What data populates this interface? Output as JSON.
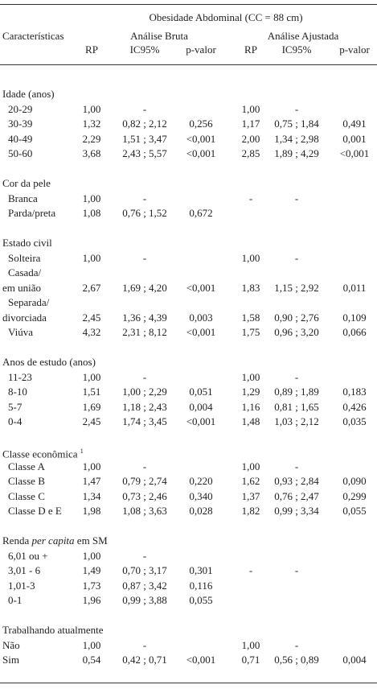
{
  "header": {
    "super": "Obesidade Abdominal (CC = 88 cm)",
    "first_column": "Características",
    "groups": [
      "Análise Bruta",
      "Análise Ajustada"
    ],
    "columns": [
      "RP",
      "IC95%",
      "p-valor",
      "RP",
      "IC95%",
      "p-valor"
    ]
  },
  "table": {
    "sections": [
      {
        "title": "Idade (anos)",
        "rows": [
          [
            "20-29",
            "1,00",
            "-",
            null,
            "1,00",
            "-",
            null
          ],
          [
            "30-39",
            "1,32",
            "0,82 ; 2,12",
            "0,256",
            "1,17",
            "0,75 ; 1,84",
            "0,491"
          ],
          [
            "40-49",
            "2,29",
            "1,51 ; 3,47",
            "<0,001",
            "2,00",
            "1,34 ; 2,98",
            "0,001"
          ],
          [
            "50-60",
            "3,68",
            "2,43 ; 5,57",
            "<0,001",
            "2,85",
            "1,89 ; 4,29",
            "<0,001"
          ]
        ]
      },
      {
        "title": "Cor da pele",
        "rows": [
          [
            "Branca",
            "1,00",
            "-",
            null,
            "-",
            "-",
            null
          ],
          [
            "Parda/preta",
            "1,08",
            "0,76 ; 1,52",
            "0,672",
            null,
            null,
            null
          ]
        ]
      },
      {
        "title": "Estado civil",
        "rows": [
          [
            "Solteira",
            "1,00",
            "-",
            null,
            "1,00",
            "-",
            null
          ],
          [
            [
              "Casada/",
              "em união"
            ],
            "2,67",
            "1,69 ; 4,20",
            "<0,001",
            "1,83",
            "1,15 ; 2,92",
            "0,011"
          ],
          [
            [
              "Separada/",
              "divorciada"
            ],
            "2,45",
            "1,36 ; 4,39",
            "0,003",
            "1,58",
            "0,90 ; 2,76",
            "0,109"
          ],
          [
            "Viúva",
            "4,32",
            "2,31 ; 8,12",
            "<0,001",
            "1,75",
            "0,96 ; 3,20",
            "0,066"
          ]
        ]
      },
      {
        "title": "Anos de estudo (anos)",
        "rows": [
          [
            "11-23",
            "1,00",
            "-",
            null,
            "1,00",
            "-",
            null
          ],
          [
            "8-10",
            "1,51",
            "1,00 ; 2,29",
            "0,051",
            "1,29",
            "0,89 ; 1,89",
            "0,183"
          ],
          [
            "5-7",
            "1,69",
            "1,18 ; 2,43",
            "0,004",
            "1,16",
            "0,81 ; 1,65",
            "0,426"
          ],
          [
            "0-4",
            "2,45",
            "1,74 ; 3,45",
            "<0,001",
            "1,48",
            "1,03 ; 2,12",
            "0,035"
          ]
        ]
      },
      {
        "title": "Classe econômica",
        "note": "1",
        "rows": [
          [
            "Classe A",
            "1,00",
            "-",
            null,
            "1,00",
            "-",
            null
          ],
          [
            "Classe B",
            "1,47",
            "0,79 ; 2,74",
            "0,220",
            "1,62",
            "0,93 ; 2,84",
            "0,090"
          ],
          [
            "Classe C",
            "1,34",
            "0,73 ; 2,46",
            "0,340",
            "1,37",
            "0,76 ; 2,47",
            "0,299"
          ],
          [
            "Classe D e E",
            "1,98",
            "1,08 ; 3,63",
            "0,028",
            "1,82",
            "0,99 ; 3,34",
            "0,055"
          ]
        ]
      },
      {
        "title": "Renda",
        "title_italic": "per capita",
        "title_after": "em SM",
        "rows": [
          [
            "6,01 ou +",
            "1,00",
            "-",
            null,
            null,
            null,
            null
          ],
          [
            "3,01 - 6",
            "1,49",
            "0,70 ; 3,17",
            "0,301",
            "-",
            "-",
            null
          ],
          [
            "1,01-3",
            "1,73",
            "0,87 ; 3,42",
            "0,116",
            null,
            null,
            null
          ],
          [
            "0-1",
            "1,96",
            "0,99 ; 3,88",
            "0,055",
            null,
            null,
            null
          ]
        ]
      },
      {
        "title": "Trabalhando atualmente",
        "rows": [
          [
            "Não",
            "1,00",
            "-",
            null,
            "1,00",
            "-",
            null
          ],
          [
            "Sim",
            "0,54",
            "0,42 ; 0,71",
            "<0,001",
            "0,71",
            "0,56 ; 0,89",
            "0,004"
          ]
        ]
      }
    ]
  }
}
